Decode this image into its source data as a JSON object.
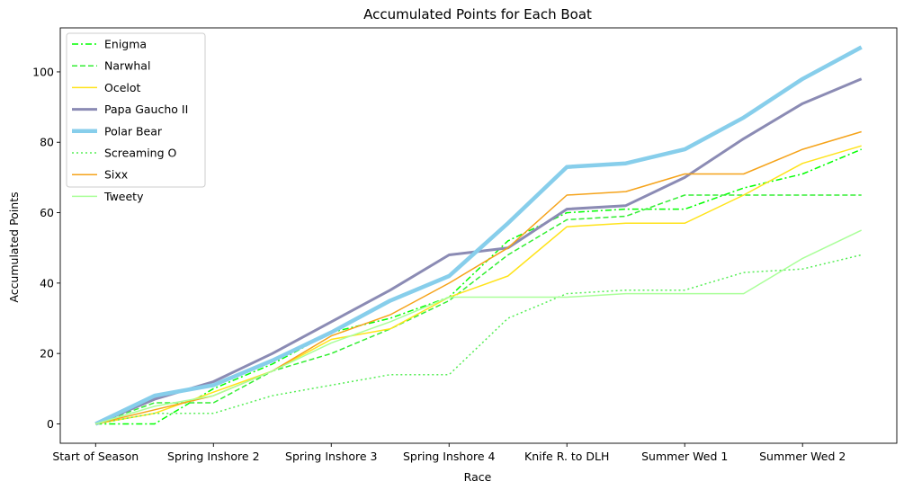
{
  "chart_data": {
    "type": "line",
    "title": "Accumulated Points for Each Boat",
    "xlabel": "Race",
    "ylabel": "Accumulated Points",
    "x_tick_labels": [
      "Start of Season",
      "Spring Inshore 2",
      "Spring Inshore 3",
      "Spring Inshore 4",
      "Knife R. to DLH",
      "Summer Wed 1",
      "Summer Wed 2"
    ],
    "x_tick_positions": [
      0,
      2,
      4,
      6,
      8,
      10,
      12
    ],
    "y_ticks": [
      0,
      20,
      40,
      60,
      80,
      100
    ],
    "xlim": [
      -0.6,
      13.6
    ],
    "ylim": [
      -5.5,
      112.5
    ],
    "grid": false,
    "legend_position": "top-left",
    "x": [
      0,
      1,
      2,
      3,
      4,
      5,
      6,
      7,
      8,
      9,
      10,
      11,
      12,
      13
    ],
    "series": [
      {
        "name": "Enigma",
        "color": "#00ff00",
        "dash": "dashdot",
        "width": 1.5,
        "values": [
          0,
          0,
          10,
          17,
          26,
          30,
          36,
          52,
          60,
          61,
          61,
          67,
          71,
          78
        ]
      },
      {
        "name": "Narwhal",
        "color": "#33ee33",
        "dash": "dashed",
        "width": 1.5,
        "values": [
          0,
          6,
          6,
          15,
          20,
          27,
          35,
          48,
          58,
          59,
          65,
          65,
          65,
          65
        ]
      },
      {
        "name": "Ocelot",
        "color": "#ffe31a",
        "dash": "solid",
        "width": 1.5,
        "values": [
          0,
          3,
          9,
          15,
          24,
          27,
          36,
          42,
          56,
          57,
          57,
          65,
          74,
          79
        ]
      },
      {
        "name": "Papa Gaucho II",
        "color": "#8b8bb4",
        "dash": "solid",
        "width": 3,
        "values": [
          0,
          7,
          12,
          20,
          29,
          38,
          48,
          50,
          61,
          62,
          70,
          81,
          91,
          98
        ]
      },
      {
        "name": "Polar Bear",
        "color": "#87ceeb",
        "dash": "solid",
        "width": 4.5,
        "values": [
          0,
          8,
          11,
          18,
          26,
          35,
          42,
          57,
          73,
          74,
          78,
          87,
          98,
          107
        ]
      },
      {
        "name": "Screaming O",
        "color": "#55ee55",
        "dash": "dotted",
        "width": 1.5,
        "values": [
          0,
          3,
          3,
          8,
          11,
          14,
          14,
          30,
          37,
          38,
          38,
          43,
          44,
          48
        ]
      },
      {
        "name": "Sixx",
        "color": "#f5a31a",
        "dash": "solid",
        "width": 1.5,
        "values": [
          0,
          4,
          8,
          15,
          25,
          31,
          40,
          50,
          65,
          66,
          71,
          71,
          78,
          83
        ]
      },
      {
        "name": "Tweety",
        "color": "#aaff99",
        "dash": "solid",
        "width": 1.5,
        "values": [
          0,
          5,
          8,
          15,
          23,
          29,
          36,
          36,
          36,
          37,
          37,
          37,
          47,
          55
        ]
      }
    ]
  }
}
